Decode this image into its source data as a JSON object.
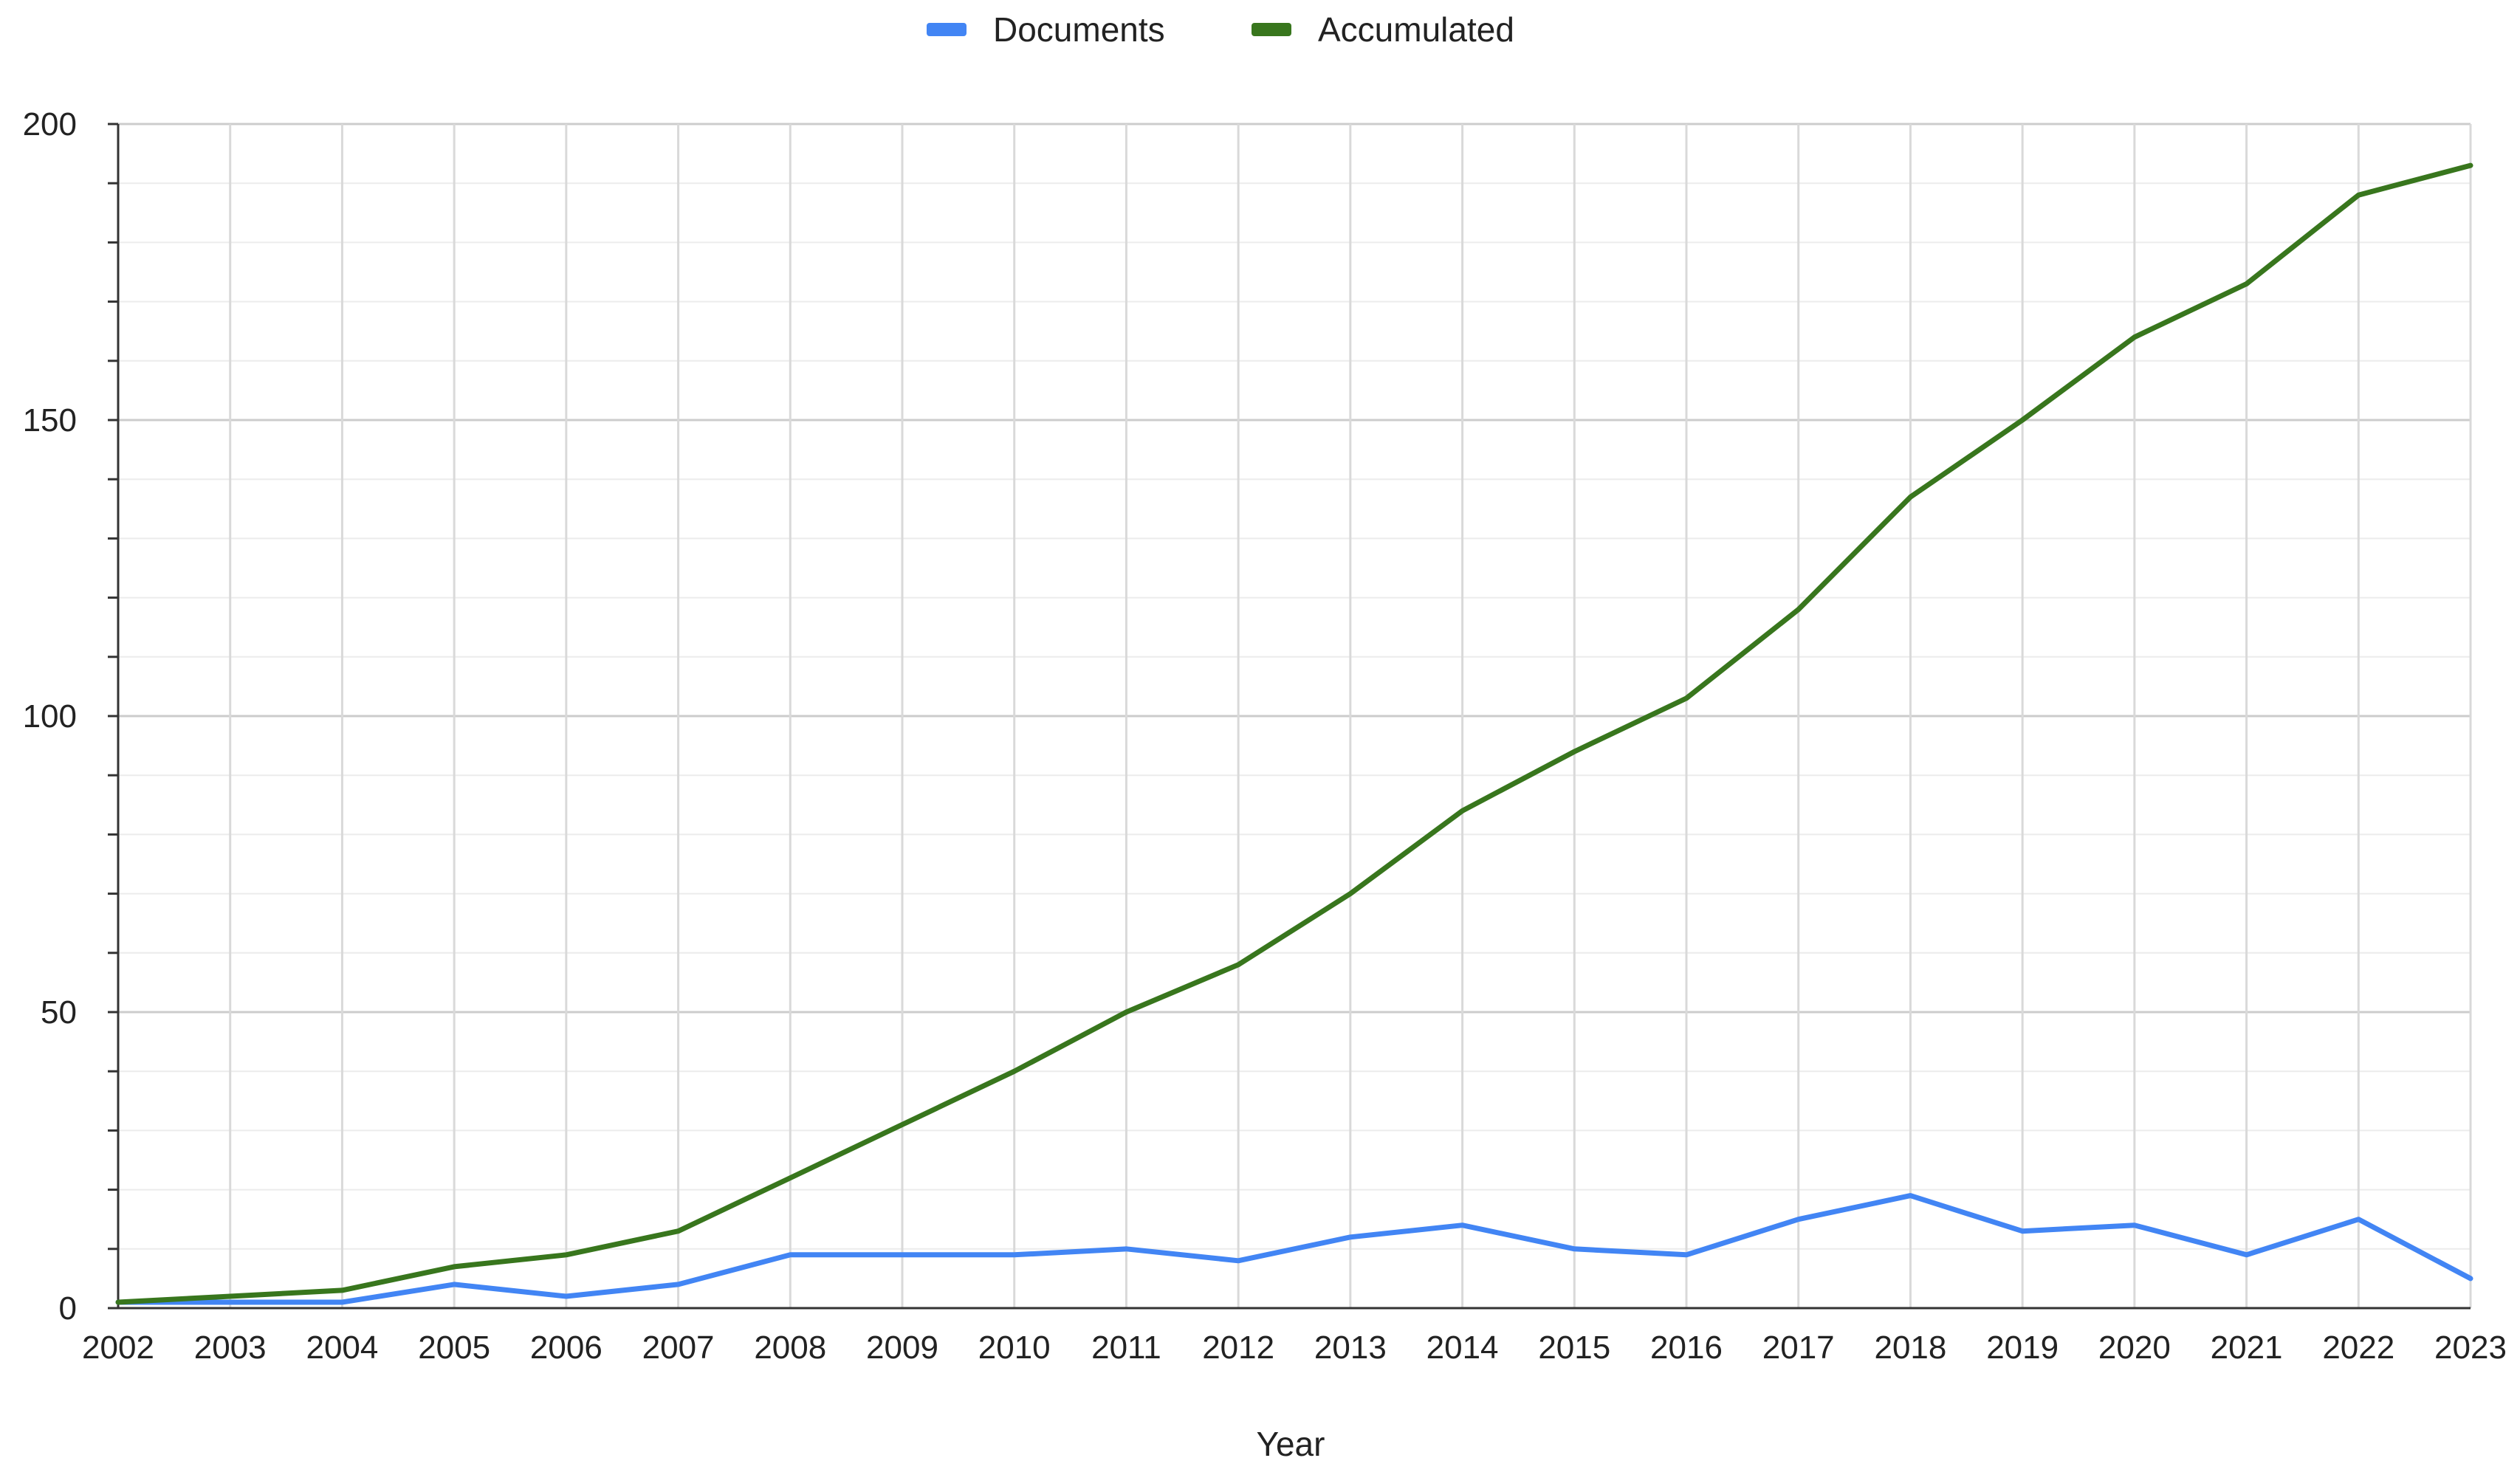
{
  "chart_data": {
    "type": "line",
    "title": "",
    "xlabel": "Year",
    "ylabel": "",
    "x": [
      "2002",
      "2003",
      "2004",
      "2005",
      "2006",
      "2007",
      "2008",
      "2009",
      "2010",
      "2011",
      "2012",
      "2013",
      "2014",
      "2015",
      "2016",
      "2017",
      "2018",
      "2019",
      "2020",
      "2021",
      "2022",
      "2023"
    ],
    "series": [
      {
        "name": "Documents",
        "color": "#4285f4",
        "values": [
          1,
          1,
          1,
          4,
          2,
          4,
          9,
          9,
          9,
          10,
          8,
          12,
          14,
          10,
          9,
          15,
          19,
          13,
          14,
          9,
          15,
          5
        ]
      },
      {
        "name": "Accumulated",
        "color": "#38761d",
        "values": [
          1,
          2,
          3,
          7,
          9,
          13,
          22,
          31,
          40,
          50,
          58,
          70,
          84,
          94,
          103,
          118,
          137,
          150,
          164,
          173,
          188,
          193
        ]
      }
    ],
    "ylim": [
      0,
      200
    ],
    "yticks": [
      "0",
      "50",
      "100",
      "150",
      "200"
    ],
    "minor_y_step": 10,
    "grid": true,
    "legend_position": "top-center"
  }
}
